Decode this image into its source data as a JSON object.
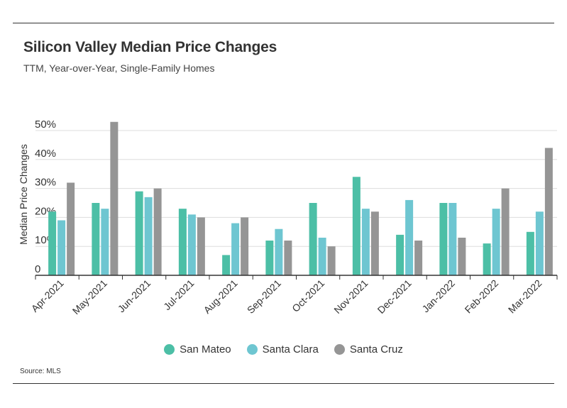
{
  "title": "Silicon Valley Median Price Changes",
  "subtitle": "TTM, Year-over-Year, Single-Family Homes",
  "source": "Source:  MLS",
  "colors": {
    "San Mateo": "#4cbfa6",
    "Santa Clara": "#6ec6d1",
    "Santa Cruz": "#959595",
    "grid": "#dddddd",
    "axis": "#333333"
  },
  "chart_data": {
    "type": "bar",
    "categories": [
      "Apr-2021",
      "May-2021",
      "Jun-2021",
      "Jul-2021",
      "Aug-2021",
      "Sep-2021",
      "Oct-2021",
      "Nov-2021",
      "Dec-2021",
      "Jan-2022",
      "Feb-2022",
      "Mar-2022"
    ],
    "series": [
      {
        "name": "San Mateo",
        "values": [
          22,
          25,
          29,
          23,
          7,
          12,
          25,
          34,
          14,
          25,
          11,
          15
        ]
      },
      {
        "name": "Santa Clara",
        "values": [
          19,
          23,
          27,
          21,
          18,
          16,
          13,
          23,
          26,
          25,
          23,
          22
        ]
      },
      {
        "name": "Santa Cruz",
        "values": [
          32,
          53,
          30,
          20,
          20,
          12,
          10,
          22,
          12,
          13,
          30,
          44
        ]
      }
    ],
    "title": "Silicon Valley Median Price Changes",
    "subtitle": "TTM, Year-over-Year, Single-Family Homes",
    "xlabel": "",
    "ylabel": "Median Price Changes",
    "ylim": [
      0,
      53
    ],
    "yticks": [
      0,
      10,
      20,
      30,
      40,
      50
    ],
    "ytick_labels": [
      "0",
      "10%",
      "20%",
      "30%",
      "40%",
      "50%"
    ],
    "grid": true,
    "legend_position": "bottom-center"
  }
}
